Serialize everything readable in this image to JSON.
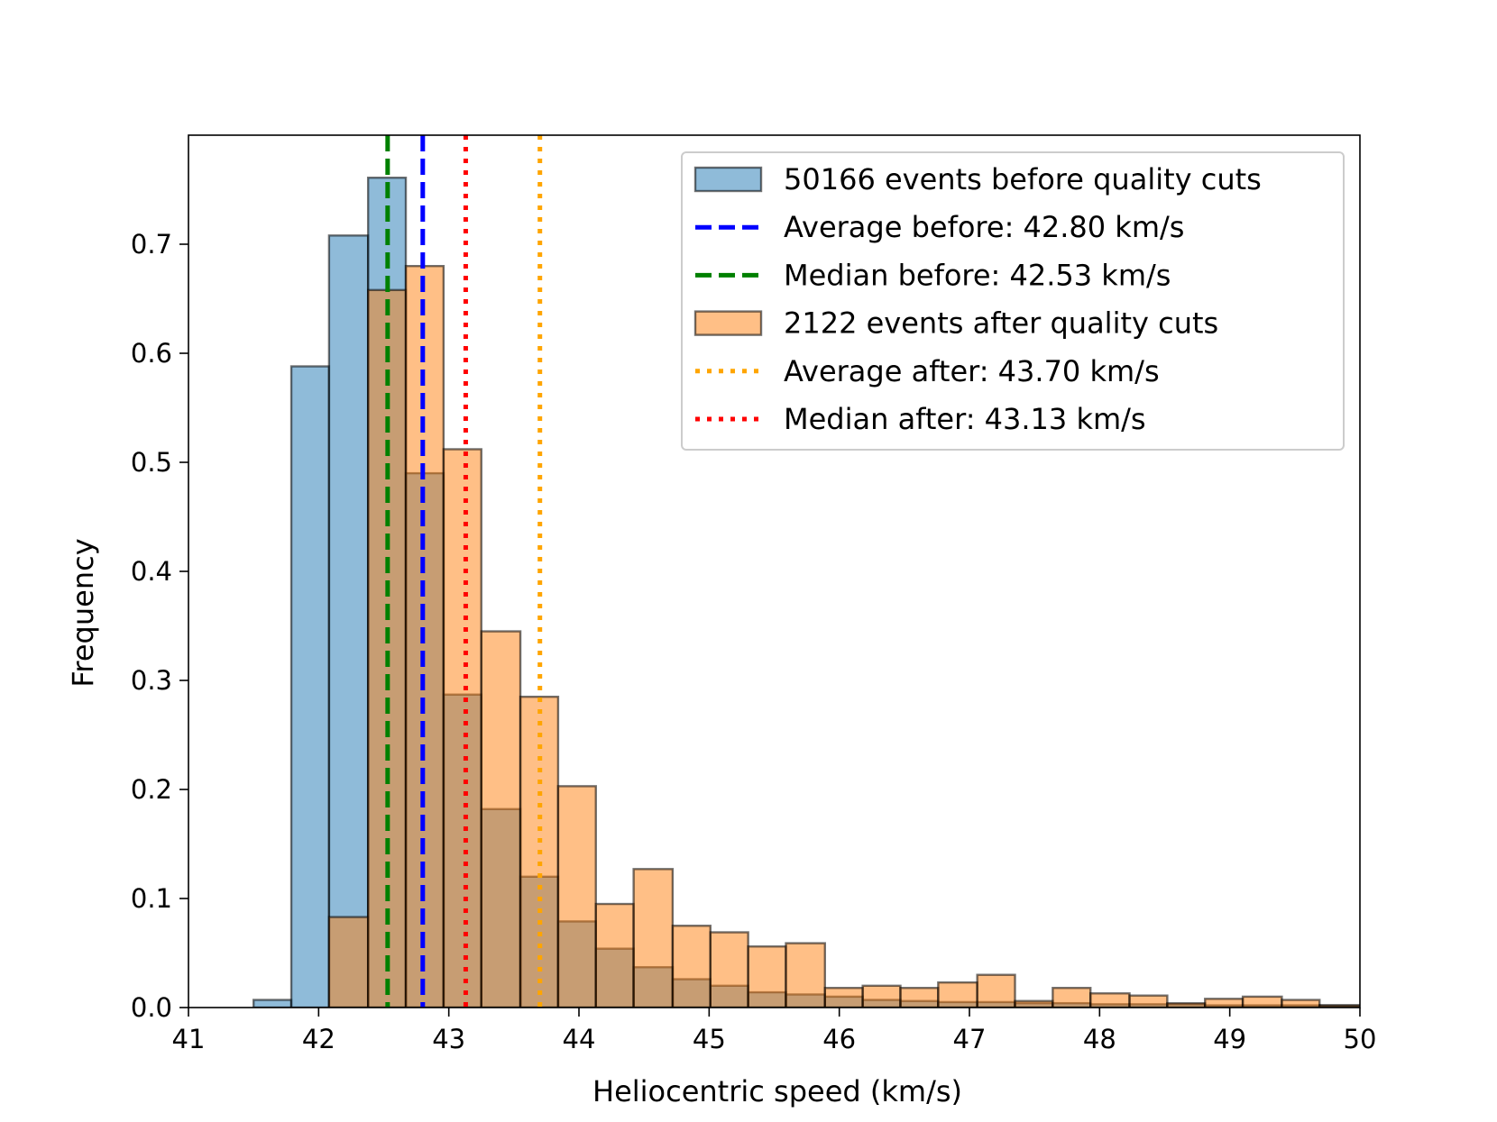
{
  "chart_data": {
    "type": "bar",
    "title": "",
    "xlabel": "Heliocentric speed (km/s)",
    "ylabel": "Frequency",
    "xlim": [
      41,
      50
    ],
    "ylim": [
      0,
      0.8
    ],
    "x_ticks": [
      "41",
      "42",
      "43",
      "44",
      "45",
      "46",
      "47",
      "48",
      "49",
      "50"
    ],
    "y_ticks": [
      "0.0",
      "0.1",
      "0.2",
      "0.3",
      "0.4",
      "0.5",
      "0.6",
      "0.7"
    ],
    "legend_position": "top-right",
    "grid": false,
    "series": [
      {
        "name": "50166 events before quality cuts",
        "kind": "histogram",
        "color": "#1f77b4",
        "bins": [
          [
            41.5,
            41.79,
            0.007
          ],
          [
            41.79,
            42.08,
            0.588
          ],
          [
            42.08,
            42.38,
            0.708
          ],
          [
            42.38,
            42.67,
            0.761
          ],
          [
            42.67,
            42.96,
            0.49
          ],
          [
            42.96,
            43.25,
            0.287
          ],
          [
            43.25,
            43.55,
            0.182
          ],
          [
            43.55,
            43.84,
            0.12
          ],
          [
            43.84,
            44.13,
            0.079
          ],
          [
            44.13,
            44.42,
            0.054
          ],
          [
            44.42,
            44.72,
            0.037
          ],
          [
            44.72,
            45.01,
            0.026
          ],
          [
            45.01,
            45.3,
            0.02
          ],
          [
            45.3,
            45.59,
            0.014
          ],
          [
            45.59,
            45.89,
            0.012
          ],
          [
            45.89,
            46.18,
            0.01
          ],
          [
            46.18,
            46.47,
            0.007
          ],
          [
            46.47,
            46.76,
            0.006
          ],
          [
            46.76,
            47.06,
            0.005
          ],
          [
            47.06,
            47.35,
            0.005
          ],
          [
            47.35,
            47.64,
            0.004
          ],
          [
            47.64,
            47.93,
            0.004
          ],
          [
            47.93,
            48.23,
            0.003
          ],
          [
            48.23,
            48.52,
            0.003
          ],
          [
            48.52,
            48.81,
            0.003
          ],
          [
            48.81,
            49.1,
            0.002
          ],
          [
            49.1,
            49.4,
            0.002
          ],
          [
            49.4,
            49.69,
            0.002
          ],
          [
            49.69,
            50.0,
            0.002
          ]
        ]
      },
      {
        "name": "2122 events after quality cuts",
        "kind": "histogram",
        "color": "#ff7f0e",
        "bins": [
          [
            42.08,
            42.38,
            0.083
          ],
          [
            42.38,
            42.67,
            0.658
          ],
          [
            42.67,
            42.96,
            0.68
          ],
          [
            42.96,
            43.25,
            0.512
          ],
          [
            43.25,
            43.55,
            0.345
          ],
          [
            43.55,
            43.84,
            0.285
          ],
          [
            43.84,
            44.13,
            0.203
          ],
          [
            44.13,
            44.42,
            0.095
          ],
          [
            44.42,
            44.72,
            0.127
          ],
          [
            44.72,
            45.01,
            0.075
          ],
          [
            45.01,
            45.3,
            0.069
          ],
          [
            45.3,
            45.59,
            0.056
          ],
          [
            45.59,
            45.89,
            0.059
          ],
          [
            45.89,
            46.18,
            0.018
          ],
          [
            46.18,
            46.47,
            0.02
          ],
          [
            46.47,
            46.76,
            0.018
          ],
          [
            46.76,
            47.06,
            0.023
          ],
          [
            47.06,
            47.35,
            0.03
          ],
          [
            47.35,
            47.64,
            0.006
          ],
          [
            47.64,
            47.93,
            0.018
          ],
          [
            47.93,
            48.23,
            0.013
          ],
          [
            48.23,
            48.52,
            0.011
          ],
          [
            48.52,
            48.81,
            0.004
          ],
          [
            48.81,
            49.1,
            0.008
          ],
          [
            49.1,
            49.4,
            0.01
          ],
          [
            49.4,
            49.69,
            0.007
          ],
          [
            49.69,
            50.0,
            0.002
          ]
        ]
      }
    ],
    "vlines": [
      {
        "name": "Average before: 42.80 km/s",
        "x": 42.8,
        "color": "#0000ff",
        "style": "dashed"
      },
      {
        "name": "Median before: 42.53 km/s",
        "x": 42.53,
        "color": "#008000",
        "style": "dashed"
      },
      {
        "name": "Average after: 43.70 km/s",
        "x": 43.7,
        "color": "#ffa500",
        "style": "dotted"
      },
      {
        "name": "Median after: 43.13 km/s",
        "x": 43.13,
        "color": "#ff0000",
        "style": "dotted"
      }
    ],
    "legend": [
      {
        "label": "50166 events before quality cuts",
        "kind": "patch",
        "color": "#1f77b4"
      },
      {
        "label": "Average before: 42.80 km/s",
        "kind": "dashed",
        "color": "#0000ff"
      },
      {
        "label": "Median before: 42.53 km/s",
        "kind": "dashed",
        "color": "#008000"
      },
      {
        "label": "2122 events after quality cuts",
        "kind": "patch",
        "color": "#ff7f0e"
      },
      {
        "label": "Average after: 43.70 km/s",
        "kind": "dotted",
        "color": "#ffa500"
      },
      {
        "label": "Median after: 43.13 km/s",
        "kind": "dotted",
        "color": "#ff0000"
      }
    ]
  }
}
